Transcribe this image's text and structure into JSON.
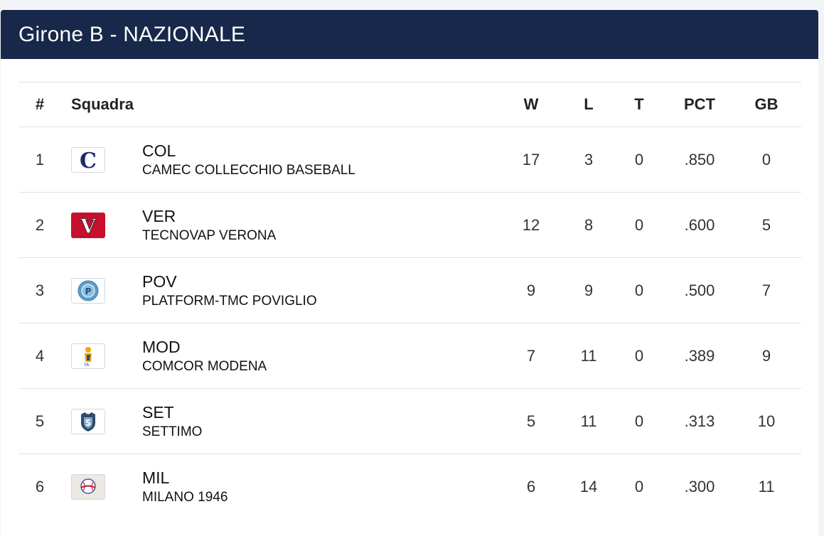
{
  "title": "Girone B - NAZIONALE",
  "headers": {
    "rank": "#",
    "team": "Squadra",
    "w": "W",
    "l": "L",
    "t": "T",
    "pct": "PCT",
    "gb": "GB"
  },
  "teams": [
    {
      "rank": "1",
      "abbr": "COL",
      "name": "CAMEC COLLECCHIO BASEBALL",
      "w": "17",
      "l": "3",
      "t": "0",
      "pct": ".850",
      "gb": "0",
      "logo": "collecchio-c-logo",
      "logo_bg": "#ffffff",
      "logo_fg": "#1a2a6c"
    },
    {
      "rank": "2",
      "abbr": "VER",
      "name": "TECNOVAP VERONA",
      "w": "12",
      "l": "8",
      "t": "0",
      "pct": ".600",
      "gb": "5",
      "logo": "verona-v-logo",
      "logo_bg": "#c8102e",
      "logo_fg": "#ffffff"
    },
    {
      "rank": "3",
      "abbr": "POV",
      "name": "PLATFORM-TMC POVIGLIO",
      "w": "9",
      "l": "9",
      "t": "0",
      "pct": ".500",
      "gb": "7",
      "logo": "poviglio-circle-logo",
      "logo_bg": "#ffffff",
      "logo_fg": "#5a9ec9"
    },
    {
      "rank": "4",
      "abbr": "MOD",
      "name": "COMCOR MODENA",
      "w": "7",
      "l": "11",
      "t": "0",
      "pct": ".389",
      "gb": "9",
      "logo": "modena-player-logo",
      "logo_bg": "#ffffff",
      "logo_fg": "#f2a900"
    },
    {
      "rank": "5",
      "abbr": "SET",
      "name": "SETTIMO",
      "w": "5",
      "l": "11",
      "t": "0",
      "pct": ".313",
      "gb": "10",
      "logo": "settimo-shield-logo",
      "logo_bg": "#ffffff",
      "logo_fg": "#2f4a6d"
    },
    {
      "rank": "6",
      "abbr": "MIL",
      "name": "MILANO 1946",
      "w": "6",
      "l": "14",
      "t": "0",
      "pct": ".300",
      "gb": "11",
      "logo": "milano-ball-logo",
      "logo_bg": "#ece9e2",
      "logo_fg": "#c8102e"
    }
  ]
}
